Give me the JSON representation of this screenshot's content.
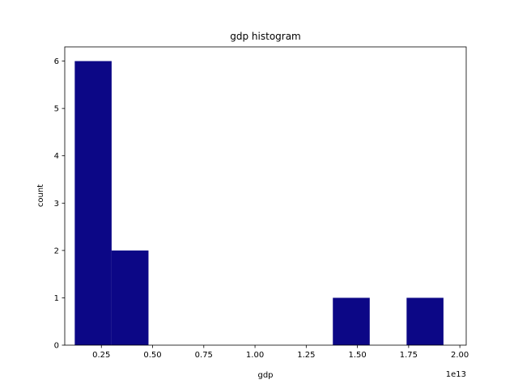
{
  "chart_data": {
    "type": "bar",
    "title": "gdp histogram",
    "xlabel": "gdp",
    "ylabel": "count",
    "x_offset_label": "1e13",
    "bar_color": "#0c0786",
    "xlim": [
      0.0712,
      2.031
    ],
    "ylim": [
      0,
      6.3
    ],
    "grid": false,
    "bins": [
      {
        "left": 0.12,
        "right": 0.3,
        "count": 6
      },
      {
        "left": 0.3,
        "right": 0.48,
        "count": 2
      },
      {
        "left": 0.48,
        "right": 0.66,
        "count": 0
      },
      {
        "left": 0.66,
        "right": 0.84,
        "count": 0
      },
      {
        "left": 0.84,
        "right": 1.02,
        "count": 0
      },
      {
        "left": 1.02,
        "right": 1.2,
        "count": 0
      },
      {
        "left": 1.2,
        "right": 1.38,
        "count": 0
      },
      {
        "left": 1.38,
        "right": 1.56,
        "count": 1
      },
      {
        "left": 1.56,
        "right": 1.74,
        "count": 0
      },
      {
        "left": 1.74,
        "right": 1.92,
        "count": 1
      }
    ],
    "x_ticks": [
      {
        "value": 0.25,
        "label": "0.25"
      },
      {
        "value": 0.5,
        "label": "0.50"
      },
      {
        "value": 0.75,
        "label": "0.75"
      },
      {
        "value": 1.0,
        "label": "1.00"
      },
      {
        "value": 1.25,
        "label": "1.25"
      },
      {
        "value": 1.5,
        "label": "1.50"
      },
      {
        "value": 1.75,
        "label": "1.75"
      },
      {
        "value": 2.0,
        "label": "2.00"
      }
    ],
    "y_ticks": [
      {
        "value": 0,
        "label": "0"
      },
      {
        "value": 1,
        "label": "1"
      },
      {
        "value": 2,
        "label": "2"
      },
      {
        "value": 3,
        "label": "3"
      },
      {
        "value": 4,
        "label": "4"
      },
      {
        "value": 5,
        "label": "5"
      },
      {
        "value": 6,
        "label": "6"
      }
    ]
  }
}
